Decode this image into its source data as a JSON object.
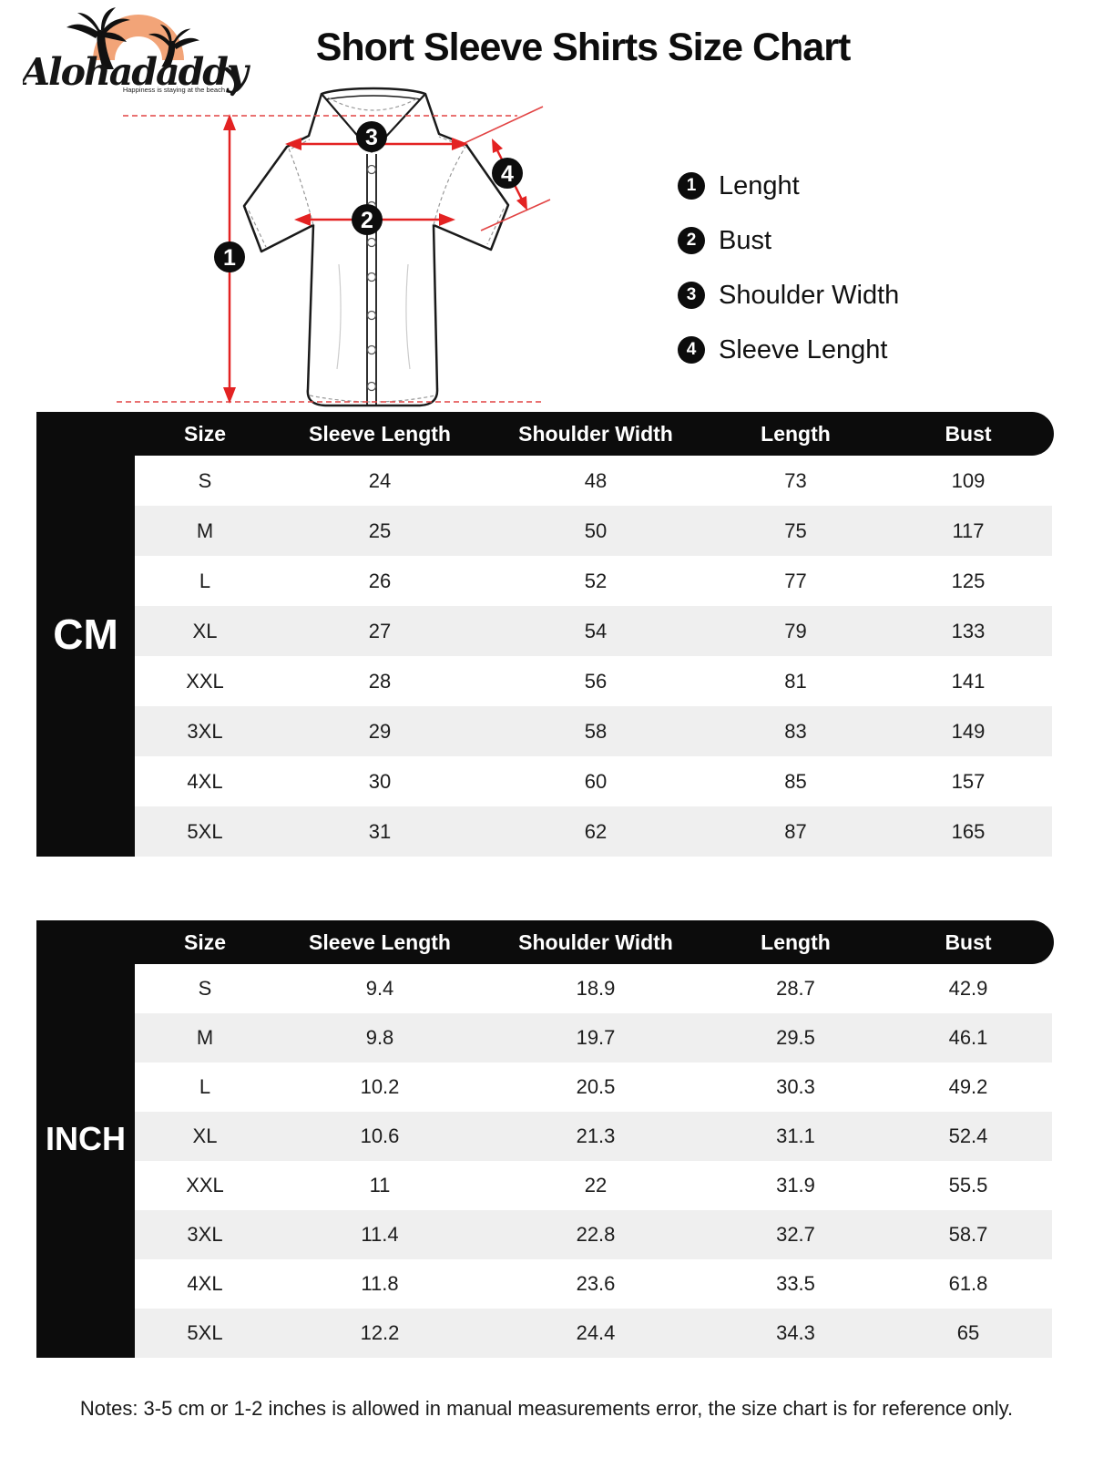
{
  "logo": {
    "brand": "Alohadaddy",
    "tagline": "Happiness is staying at the beach"
  },
  "header": {
    "title": "Short Sleeve Shirts Size Chart"
  },
  "diagram": {
    "markers": [
      "1",
      "2",
      "3",
      "4"
    ]
  },
  "legend": {
    "items": [
      {
        "num": "1",
        "label": "Lenght"
      },
      {
        "num": "2",
        "label": "Bust"
      },
      {
        "num": "3",
        "label": "Shoulder Width"
      },
      {
        "num": "4",
        "label": "Sleeve Lenght"
      }
    ]
  },
  "tables": {
    "columns": [
      "Size",
      "Sleeve Length",
      "Shoulder Width",
      "Length",
      "Bust"
    ],
    "cm": {
      "unit": "CM",
      "rows": [
        {
          "size": "S",
          "values": [
            "24",
            "48",
            "73",
            "109"
          ]
        },
        {
          "size": "M",
          "values": [
            "25",
            "50",
            "75",
            "117"
          ]
        },
        {
          "size": "L",
          "values": [
            "26",
            "52",
            "77",
            "125"
          ]
        },
        {
          "size": "XL",
          "values": [
            "27",
            "54",
            "79",
            "133"
          ]
        },
        {
          "size": "XXL",
          "values": [
            "28",
            "56",
            "81",
            "141"
          ]
        },
        {
          "size": "3XL",
          "values": [
            "29",
            "58",
            "83",
            "149"
          ]
        },
        {
          "size": "4XL",
          "values": [
            "30",
            "60",
            "85",
            "157"
          ]
        },
        {
          "size": "5XL",
          "values": [
            "31",
            "62",
            "87",
            "165"
          ]
        }
      ]
    },
    "inch": {
      "unit": "INCH",
      "rows": [
        {
          "size": "S",
          "values": [
            "9.4",
            "18.9",
            "28.7",
            "42.9"
          ]
        },
        {
          "size": "M",
          "values": [
            "9.8",
            "19.7",
            "29.5",
            "46.1"
          ]
        },
        {
          "size": "L",
          "values": [
            "10.2",
            "20.5",
            "30.3",
            "49.2"
          ]
        },
        {
          "size": "XL",
          "values": [
            "10.6",
            "21.3",
            "31.1",
            "52.4"
          ]
        },
        {
          "size": "XXL",
          "values": [
            "11",
            "22",
            "31.9",
            "55.5"
          ]
        },
        {
          "size": "3XL",
          "values": [
            "11.4",
            "22.8",
            "32.7",
            "58.7"
          ]
        },
        {
          "size": "4XL",
          "values": [
            "11.8",
            "23.6",
            "33.5",
            "61.8"
          ]
        },
        {
          "size": "5XL",
          "values": [
            "12.2",
            "24.4",
            "34.3",
            "65"
          ]
        }
      ]
    }
  },
  "note": "Notes: 3-5 cm or 1-2 inches is allowed in manual measurements error, the size chart is for reference only.",
  "colors": {
    "accent_red": "#e32222",
    "construction_red": "#e24444",
    "bar_black": "#0c0c0c",
    "row_alt": "#efefef",
    "logo_orange": "#f2a478"
  }
}
